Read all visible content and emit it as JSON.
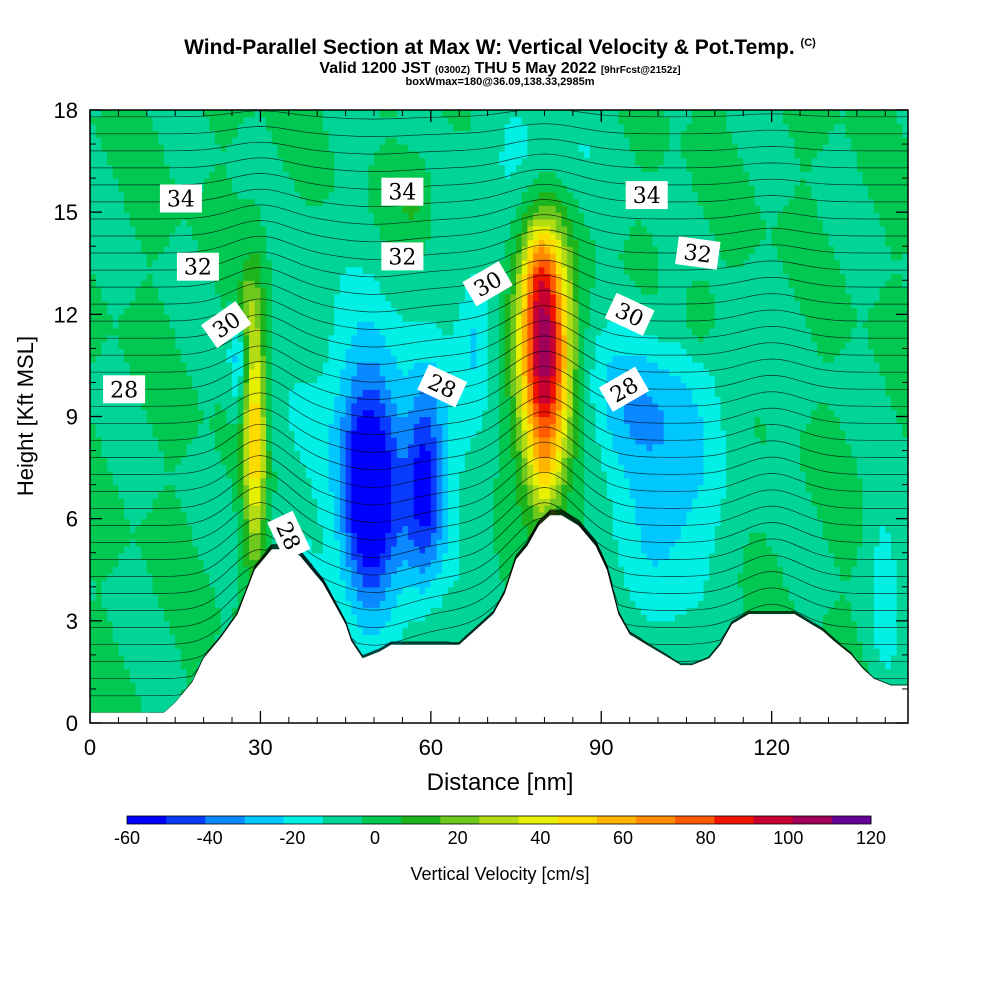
{
  "title": {
    "main": "Wind-Parallel Section at Max W: Vertical Velocity & Pot.Temp.",
    "main_suffix": "(C)",
    "valid_prefix": "Valid 1200 JST",
    "valid_zulu": "(0300Z)",
    "valid_rest": "THU 5 May 2022",
    "forecast": "[9hrFcst@2152z]",
    "box": "boxWmax=180@36.09,138.33,2985m"
  },
  "chart_data": {
    "type": "heatmap",
    "xlabel": "Distance [nm]",
    "ylabel": "Height [Kft MSL]",
    "xlim": [
      0,
      144
    ],
    "ylim": [
      0,
      18
    ],
    "xticks": [
      0,
      30,
      60,
      90,
      120
    ],
    "yticks": [
      0,
      3,
      6,
      9,
      12,
      15,
      18
    ],
    "colorbar": {
      "label": "Vertical Velocity [cm/s]",
      "ticks": [
        -60,
        -40,
        -20,
        0,
        20,
        40,
        60,
        80,
        100,
        120
      ],
      "levels": [
        -60,
        -50,
        -40,
        -30,
        -20,
        -10,
        0,
        10,
        20,
        30,
        40,
        50,
        60,
        70,
        80,
        90,
        100,
        110,
        120
      ],
      "colors": [
        "#0000ff",
        "#0a3cff",
        "#0a88ff",
        "#00c8ff",
        "#00f0e6",
        "#00d496",
        "#00c850",
        "#1eb41e",
        "#6ec81e",
        "#b4dc14",
        "#e6f000",
        "#ffdc00",
        "#ffb400",
        "#ff8c00",
        "#ff5a00",
        "#f01400",
        "#c80032",
        "#a0005a",
        "#640096"
      ]
    },
    "terrain_height_kft": {
      "x": [
        0,
        13,
        15,
        18,
        20,
        23,
        26,
        29,
        32,
        35,
        37,
        39,
        41,
        43,
        45,
        46,
        48,
        51,
        53,
        57,
        61,
        65,
        67,
        69,
        71,
        73,
        75,
        77,
        79,
        81,
        83,
        86,
        89,
        91,
        93,
        95,
        98,
        100,
        102,
        104,
        106,
        109,
        111,
        113,
        116,
        119,
        124,
        129,
        131,
        134,
        136,
        138,
        141,
        144
      ],
      "h": [
        0.3,
        0.3,
        0.6,
        1.2,
        1.9,
        2.5,
        3.2,
        4.5,
        5.1,
        5.1,
        4.9,
        4.5,
        4.1,
        3.5,
        2.9,
        2.4,
        1.9,
        2.1,
        2.3,
        2.3,
        2.3,
        2.3,
        2.6,
        2.9,
        3.2,
        3.8,
        4.8,
        5.2,
        5.8,
        6.1,
        6.1,
        5.8,
        5.2,
        4.5,
        3.2,
        2.6,
        2.3,
        2.1,
        1.9,
        1.7,
        1.7,
        1.9,
        2.3,
        2.9,
        3.2,
        3.2,
        3.2,
        2.7,
        2.4,
        2.0,
        1.6,
        1.3,
        1.1,
        1.1
      ]
    },
    "vertical_velocity_features": [
      {
        "x": 29,
        "y": 8.6,
        "sx": 1.4,
        "sy": 2.8,
        "w": 58
      },
      {
        "x": 27,
        "y": 12.2,
        "sx": 1.2,
        "sy": 0.6,
        "w": 20
      },
      {
        "x": 26,
        "y": 10.8,
        "sx": 1.1,
        "sy": 1.1,
        "w": -24
      },
      {
        "x": 80,
        "y": 10.8,
        "sx": 3.2,
        "sy": 2.4,
        "w": 120
      },
      {
        "x": 79,
        "y": 13.3,
        "sx": 2.2,
        "sy": 1.0,
        "w": 28
      },
      {
        "x": 80,
        "y": 7.4,
        "sx": 2.0,
        "sy": 1.1,
        "w": 22
      },
      {
        "x": 49,
        "y": 6.6,
        "sx": 3.5,
        "sy": 2.5,
        "w": -56
      },
      {
        "x": 59,
        "y": 7.0,
        "sx": 2.5,
        "sy": 2.0,
        "w": -44
      },
      {
        "x": 54,
        "y": 7.5,
        "sx": 9.0,
        "sy": 3.2,
        "w": -18
      },
      {
        "x": 102,
        "y": 6.5,
        "sx": 6.0,
        "sy": 2.5,
        "w": -26
      },
      {
        "x": 95,
        "y": 9.0,
        "sx": 5.0,
        "sy": 1.5,
        "w": -14
      },
      {
        "x": 68,
        "y": 11.5,
        "sx": 2.2,
        "sy": 1.5,
        "w": -20
      },
      {
        "x": 96,
        "y": 10.0,
        "sx": 14.0,
        "sy": 1.5,
        "w": -10
      },
      {
        "x": 78,
        "y": 16.5,
        "sx": 8.0,
        "sy": 1.4,
        "w": -14
      },
      {
        "x": 42,
        "y": 10.5,
        "sx": 7.0,
        "sy": 2.5,
        "w": -8
      },
      {
        "x": 57,
        "y": 15.5,
        "sx": 2.5,
        "sy": 0.8,
        "w": 14
      },
      {
        "x": 107,
        "y": 12.0,
        "sx": 1.8,
        "sy": 0.7,
        "w": 14
      },
      {
        "x": 140,
        "y": 4.0,
        "sx": 2.0,
        "sy": 2.0,
        "w": -15
      },
      {
        "x": 36,
        "y": 4.0,
        "sx": 4.0,
        "sy": 2.0,
        "w": -8
      }
    ],
    "theta_label_values_C": [
      34,
      34,
      34,
      32,
      32,
      32,
      30,
      30,
      30,
      28,
      28,
      28,
      28
    ]
  }
}
